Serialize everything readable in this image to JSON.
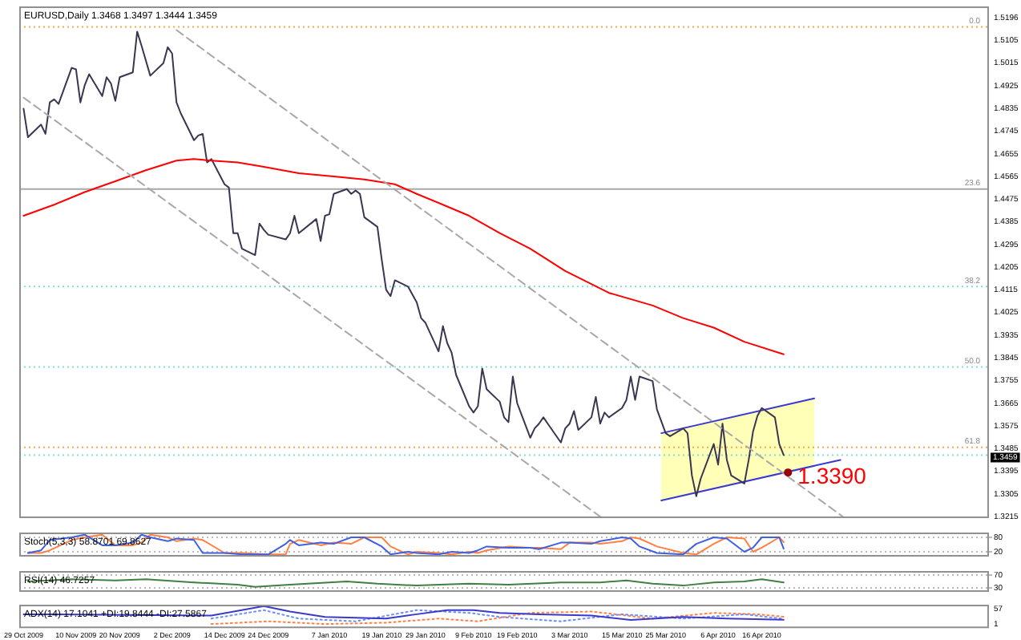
{
  "chart_data": [
    {
      "type": "line",
      "title": "EURUSD,Daily 1.3468 1.3497 1.3444 1.3459",
      "xlim": [
        "2009-10-28",
        "2010-06-07"
      ],
      "ylim": [
        1.3209,
        1.524
      ],
      "yticks": [
        1.5196,
        1.5105,
        1.5015,
        1.4925,
        1.4835,
        1.4745,
        1.4655,
        1.4565,
        1.4475,
        1.4385,
        1.4295,
        1.4205,
        1.4115,
        1.4025,
        1.3935,
        1.3845,
        1.3755,
        1.3665,
        1.3575,
        1.3485,
        1.3395,
        1.3305,
        1.3215
      ],
      "tick_labels": "y",
      "grid": false,
      "legend": false,
      "marker": "none",
      "series": [
        {
          "color": "#a8a8a8",
          "line_style": "dashed",
          "x": [
            "2009-12-03",
            "2010-05-05"
          ],
          "values": [
            1.5146,
            1.3209
          ]
        },
        {
          "color": "#a8a8a8",
          "line_style": "dashed",
          "x": [
            "2009-10-29",
            "2010-03-10"
          ],
          "values": [
            1.4878,
            1.3215
          ]
        },
        {
          "color": "#ff0000",
          "x": [
            "2009-10-29",
            "2009-11-05",
            "2009-11-12",
            "2009-11-19",
            "2009-11-26",
            "2009-12-03",
            "2009-12-07",
            "2009-12-11",
            "2009-12-17",
            "2009-12-23",
            "2009-12-31",
            "2010-01-08",
            "2010-01-15",
            "2010-01-22",
            "2010-01-27",
            "2010-02-02",
            "2010-02-08",
            "2010-02-15",
            "2010-02-22",
            "2010-03-02",
            "2010-03-12",
            "2010-03-22",
            "2010-03-29",
            "2010-04-05",
            "2010-04-12",
            "2010-04-21"
          ],
          "values": [
            1.4409,
            1.4453,
            1.4503,
            1.4546,
            1.459,
            1.4628,
            1.4634,
            1.4628,
            1.4621,
            1.4603,
            1.4578,
            1.4565,
            1.4553,
            1.4534,
            1.4496,
            1.4453,
            1.4409,
            1.434,
            1.4278,
            1.419,
            1.4103,
            1.4053,
            1.4003,
            1.3965,
            1.3909,
            1.3859
          ]
        },
        {
          "color": "#3c3550",
          "x": [
            "2009-10-29",
            "2009-10-30",
            "2009-11-02",
            "2009-11-03",
            "2009-11-04",
            "2009-11-05",
            "2009-11-06",
            "2009-11-09",
            "2009-11-10",
            "2009-11-11",
            "2009-11-12",
            "2009-11-13",
            "2009-11-16",
            "2009-11-17",
            "2009-11-18",
            "2009-11-19",
            "2009-11-20",
            "2009-11-23",
            "2009-11-24",
            "2009-11-25",
            "2009-11-27",
            "2009-11-30",
            "2009-12-01",
            "2009-12-02",
            "2009-12-03",
            "2009-12-04",
            "2009-12-07",
            "2009-12-08",
            "2009-12-09",
            "2009-12-10",
            "2009-12-11",
            "2009-12-14",
            "2009-12-15",
            "2009-12-16",
            "2009-12-17",
            "2009-12-18",
            "2009-12-21",
            "2009-12-22",
            "2009-12-23",
            "2009-12-24",
            "2009-12-28",
            "2009-12-29",
            "2009-12-30",
            "2009-12-31",
            "2010-01-04",
            "2010-01-05",
            "2010-01-06",
            "2010-01-07",
            "2010-01-08",
            "2010-01-11",
            "2010-01-12",
            "2010-01-13",
            "2010-01-14",
            "2010-01-15",
            "2010-01-18",
            "2010-01-19",
            "2010-01-20",
            "2010-01-21",
            "2010-01-22",
            "2010-01-25",
            "2010-01-27",
            "2010-01-28",
            "2010-01-29",
            "2010-02-01",
            "2010-02-02",
            "2010-02-03",
            "2010-02-04",
            "2010-02-05",
            "2010-02-08",
            "2010-02-09",
            "2010-02-10",
            "2010-02-11",
            "2010-02-12",
            "2010-02-15",
            "2010-02-16",
            "2010-02-17",
            "2010-02-18",
            "2010-02-19",
            "2010-02-22",
            "2010-02-23",
            "2010-02-24",
            "2010-02-25",
            "2010-02-26",
            "2010-03-01",
            "2010-03-02",
            "2010-03-03",
            "2010-03-04",
            "2010-03-05",
            "2010-03-08",
            "2010-03-09",
            "2010-03-10",
            "2010-03-11",
            "2010-03-12",
            "2010-03-15",
            "2010-03-16",
            "2010-03-17",
            "2010-03-18",
            "2010-03-19",
            "2010-03-22",
            "2010-03-23",
            "2010-03-25",
            "2010-03-26",
            "2010-03-29",
            "2010-03-30",
            "2010-03-31",
            "2010-04-01",
            "2010-04-02",
            "2010-04-05",
            "2010-04-06",
            "2010-04-07",
            "2010-04-08",
            "2010-04-09",
            "2010-04-12",
            "2010-04-13",
            "2010-04-14",
            "2010-04-15",
            "2010-04-16",
            "2010-04-19",
            "2010-04-20",
            "2010-04-21"
          ],
          "values": [
            1.4834,
            1.4721,
            1.4771,
            1.4734,
            1.4859,
            1.4871,
            1.4853,
            1.4996,
            1.499,
            1.4859,
            1.4928,
            1.4971,
            1.4884,
            1.4959,
            1.4934,
            1.4865,
            1.4959,
            1.4978,
            1.514,
            1.5084,
            1.4965,
            1.5015,
            1.5078,
            1.5053,
            1.4859,
            1.4815,
            1.4709,
            1.4728,
            1.4734,
            1.4621,
            1.4634,
            1.4534,
            1.4521,
            1.434,
            1.434,
            1.4278,
            1.4253,
            1.4378,
            1.4353,
            1.4334,
            1.4315,
            1.434,
            1.4409,
            1.434,
            1.4396,
            1.4309,
            1.4409,
            1.4415,
            1.4496,
            1.4515,
            1.4496,
            1.4509,
            1.4496,
            1.4403,
            1.4365,
            1.4234,
            1.4115,
            1.409,
            1.4153,
            1.4128,
            1.4065,
            1.4003,
            1.3984,
            1.3871,
            1.3971,
            1.3903,
            1.3865,
            1.3778,
            1.3653,
            1.3628,
            1.3653,
            1.3803,
            1.3721,
            1.3671,
            1.3609,
            1.359,
            1.3771,
            1.3665,
            1.3528,
            1.3565,
            1.3584,
            1.3609,
            1.3584,
            1.3509,
            1.3565,
            1.3584,
            1.3634,
            1.3559,
            1.3609,
            1.369,
            1.3584,
            1.3628,
            1.3609,
            1.3646,
            1.3678,
            1.3771,
            1.3678,
            1.3771,
            1.3753,
            1.364,
            1.3546,
            1.3534,
            1.3565,
            1.3546,
            1.3378,
            1.3296,
            1.3365,
            1.3503,
            1.3421,
            1.3584,
            1.344,
            1.3378,
            1.3346,
            1.344,
            1.3553,
            1.3615,
            1.3646,
            1.3609,
            1.3503,
            1.3459
          ]
        },
        {
          "color": "#3a3ad0",
          "x": [
            "2010-03-24",
            "2010-04-28"
          ],
          "values": [
            1.3546,
            1.3684
          ],
          "lower": [
            1.3279,
            1.3418
          ],
          "upper": [
            1.3546,
            1.3684
          ]
        },
        {
          "color": "#3a3ad0",
          "x": [
            "2010-03-24",
            "2010-05-04"
          ],
          "values": [
            1.3279,
            1.344
          ]
        }
      ],
      "ref_lines": [
        {
          "axis": "y",
          "value": 1.5159,
          "color": "#e8b050",
          "line_style": "dotted"
        },
        {
          "axis": "y",
          "value": 1.4515,
          "color": "#a8a8a8",
          "line_style": "solid"
        },
        {
          "axis": "y",
          "value": 1.4128,
          "color": "#80dede",
          "line_style": "dotted"
        },
        {
          "axis": "y",
          "value": 1.3809,
          "color": "#80dede",
          "line_style": "dotted"
        },
        {
          "axis": "y",
          "value": 1.349,
          "color": "#e8b050",
          "line_style": "dotted"
        },
        {
          "axis": "y",
          "value": 1.3459,
          "label": "1.3459",
          "color": "#80dede",
          "line_style": "dotted"
        }
      ],
      "annotations": [
        {
          "text": "1.3390",
          "x": "2010-04-22",
          "y": 1.339
        },
        {
          "text": "0.0",
          "x": "2010-06-05",
          "y": 1.5159
        },
        {
          "text": "23.6",
          "x": "2010-06-05",
          "y": 1.4515
        },
        {
          "text": "38.2",
          "x": "2010-06-05",
          "y": 1.4128
        },
        {
          "text": "50.0",
          "x": "2010-06-05",
          "y": 1.3809
        },
        {
          "text": "61.8",
          "x": "2010-06-05",
          "y": 1.349
        }
      ]
    },
    {
      "type": "line",
      "title": "Stoch(5,3,3) 58.8701 69.8627",
      "xlim": [
        "2009-10-28",
        "2010-06-07"
      ],
      "ylim": [
        0,
        100
      ],
      "yticks": [
        20,
        80
      ],
      "tick_labels": "y",
      "grid": "y",
      "legend": false,
      "marker": "none",
      "series": [
        {
          "color": "#4060e0",
          "x": [
            "2009-10-30",
            "2009-11-02",
            "2009-11-04",
            "2009-11-09",
            "2009-11-12",
            "2009-11-16",
            "2009-11-19",
            "2009-11-23",
            "2009-11-25",
            "2009-11-27",
            "2009-12-01",
            "2009-12-03",
            "2009-12-07",
            "2009-12-09",
            "2009-12-14",
            "2009-12-18",
            "2009-12-24",
            "2009-12-28",
            "2009-12-29",
            "2009-12-31",
            "2010-01-05",
            "2010-01-08",
            "2010-01-12",
            "2010-01-15",
            "2010-01-19",
            "2010-01-21",
            "2010-01-25",
            "2010-01-27",
            "2010-02-01",
            "2010-02-04",
            "2010-02-08",
            "2010-02-10",
            "2010-02-12",
            "2010-02-17",
            "2010-02-22",
            "2010-02-24",
            "2010-03-01",
            "2010-03-03",
            "2010-03-08",
            "2010-03-10",
            "2010-03-15",
            "2010-03-17",
            "2010-03-19",
            "2010-03-23",
            "2010-03-29",
            "2010-04-01",
            "2010-04-05",
            "2010-04-08",
            "2010-04-12",
            "2010-04-14",
            "2010-04-16",
            "2010-04-20",
            "2010-04-21"
          ],
          "values": [
            15,
            26,
            69,
            80,
            91,
            47,
            47,
            58,
            91,
            80,
            64,
            75,
            69,
            15,
            15,
            9,
            9,
            53,
            69,
            47,
            58,
            53,
            80,
            80,
            42,
            9,
            20,
            15,
            9,
            20,
            15,
            26,
            42,
            37,
            37,
            31,
            58,
            58,
            53,
            64,
            80,
            75,
            42,
            15,
            9,
            53,
            80,
            75,
            20,
            37,
            80,
            80,
            33
          ]
        },
        {
          "color": "#ff8040",
          "x": [
            "2009-10-30",
            "2009-11-02",
            "2009-11-04",
            "2009-11-09",
            "2009-11-12",
            "2009-11-16",
            "2009-11-19",
            "2009-11-23",
            "2009-11-25",
            "2009-11-27",
            "2009-12-01",
            "2009-12-03",
            "2009-12-07",
            "2009-12-09",
            "2009-12-14",
            "2009-12-18",
            "2009-12-24",
            "2009-12-28",
            "2009-12-29",
            "2009-12-31",
            "2010-01-05",
            "2010-01-08",
            "2010-01-12",
            "2010-01-15",
            "2010-01-19",
            "2010-01-21",
            "2010-01-25",
            "2010-01-27",
            "2010-02-01",
            "2010-02-04",
            "2010-02-08",
            "2010-02-10",
            "2010-02-12",
            "2010-02-17",
            "2010-02-22",
            "2010-02-24",
            "2010-03-01",
            "2010-03-03",
            "2010-03-08",
            "2010-03-10",
            "2010-03-15",
            "2010-03-17",
            "2010-03-19",
            "2010-03-23",
            "2010-03-29",
            "2010-04-01",
            "2010-04-05",
            "2010-04-08",
            "2010-04-12",
            "2010-04-14",
            "2010-04-16",
            "2010-04-20",
            "2010-04-21"
          ],
          "values": [
            15,
            15,
            26,
            69,
            80,
            91,
            47,
            47,
            58,
            91,
            80,
            64,
            75,
            69,
            15,
            15,
            9,
            9,
            53,
            69,
            47,
            58,
            53,
            80,
            80,
            42,
            9,
            20,
            15,
            9,
            20,
            15,
            26,
            42,
            37,
            37,
            31,
            58,
            58,
            53,
            64,
            80,
            75,
            42,
            15,
            9,
            53,
            80,
            75,
            20,
            37,
            80,
            60
          ]
        }
      ]
    },
    {
      "type": "line",
      "title": "RSI(14) 46.7257",
      "xlim": [
        "2009-10-28",
        "2010-06-07"
      ],
      "ylim": [
        17,
        83
      ],
      "yticks": [
        30,
        70
      ],
      "tick_labels": "y",
      "grid": "y",
      "legend": false,
      "marker": "none",
      "series": [
        {
          "color": "#408040",
          "x": [
            "2009-10-30",
            "2009-11-09",
            "2009-11-19",
            "2009-11-26",
            "2009-12-07",
            "2009-12-17",
            "2009-12-21",
            "2009-12-29",
            "2010-01-11",
            "2010-01-18",
            "2010-01-27",
            "2010-02-08",
            "2010-02-17",
            "2010-03-01",
            "2010-03-10",
            "2010-03-16",
            "2010-03-22",
            "2010-03-29",
            "2010-04-05",
            "2010-04-12",
            "2010-04-16",
            "2010-04-21"
          ],
          "values": [
            50,
            57,
            53,
            57,
            47,
            40,
            33,
            40,
            50,
            43,
            37,
            43,
            40,
            47,
            47,
            53,
            43,
            37,
            47,
            50,
            57,
            47
          ]
        }
      ]
    },
    {
      "type": "line",
      "title": "ADX(14) 17.1041 +DI:19.8444 -DI:27.5867",
      "xlim": [
        "2009-10-28",
        "2010-06-07"
      ],
      "xticks": [
        {
          "value": "2009-10-29",
          "label": "29 Oct 2009"
        },
        {
          "value": "2009-11-10",
          "label": "10 Nov 2009"
        },
        {
          "value": "2009-11-20",
          "label": "20 Nov 2009"
        },
        {
          "value": "2009-12-02",
          "label": "2 Dec 2009"
        },
        {
          "value": "2009-12-14",
          "label": "14 Dec 2009"
        },
        {
          "value": "2009-12-24",
          "label": "24 Dec 2009"
        },
        {
          "value": "2010-01-07",
          "label": "7 Jan 2010"
        },
        {
          "value": "2010-01-19",
          "label": "19 Jan 2010"
        },
        {
          "value": "2010-01-29",
          "label": "29 Jan 2010"
        },
        {
          "value": "2010-02-09",
          "label": "9 Feb 2010"
        },
        {
          "value": "2010-02-19",
          "label": "19 Feb 2010"
        },
        {
          "value": "2010-03-03",
          "label": "3 Mar 2010"
        },
        {
          "value": "2010-03-15",
          "label": "15 Mar 2010"
        },
        {
          "value": "2010-03-25",
          "label": "25 Mar 2010"
        },
        {
          "value": "2010-04-06",
          "label": "6 Apr 2010"
        },
        {
          "value": "2010-04-16",
          "label": "16 Apr 2010"
        }
      ],
      "ylim": [
        -14,
        72
      ],
      "yticks": [
        1,
        57
      ],
      "grid": false,
      "legend": false,
      "marker": "none",
      "series": [
        {
          "color": "#3a3ac8",
          "x": [
            "2009-10-29",
            "2009-11-05",
            "2009-12-11",
            "2009-12-23",
            "2009-12-29",
            "2010-01-06",
            "2010-01-20",
            "2010-01-27",
            "2010-02-03",
            "2010-02-09",
            "2010-02-15",
            "2010-02-24",
            "2010-03-08",
            "2010-03-17",
            "2010-03-29",
            "2010-04-08",
            "2010-04-21"
          ],
          "values": [
            37,
            37,
            32,
            67,
            47,
            27,
            21,
            37,
            52,
            52,
            42,
            37,
            32,
            16,
            27,
            21,
            17
          ]
        },
        {
          "color": "#6a8cff",
          "line_style": "dotted",
          "x": [
            "2009-12-11",
            "2009-12-23",
            "2009-12-31",
            "2010-01-13",
            "2010-01-27",
            "2010-02-08",
            "2010-02-15",
            "2010-03-01",
            "2010-03-15",
            "2010-03-29",
            "2010-04-12",
            "2010-04-21"
          ],
          "values": [
            21,
            52,
            21,
            11,
            52,
            42,
            27,
            11,
            37,
            21,
            37,
            20
          ]
        },
        {
          "color": "#ff8040",
          "line_style": "dotted",
          "x": [
            "2009-12-11",
            "2009-12-24",
            "2010-01-06",
            "2010-01-20",
            "2010-02-01",
            "2010-02-10",
            "2010-02-22",
            "2010-03-08",
            "2010-03-22",
            "2010-04-05",
            "2010-04-15",
            "2010-04-21"
          ],
          "values": [
            1,
            11,
            1,
            6,
            21,
            11,
            42,
            47,
            21,
            42,
            37,
            28
          ]
        }
      ]
    }
  ]
}
